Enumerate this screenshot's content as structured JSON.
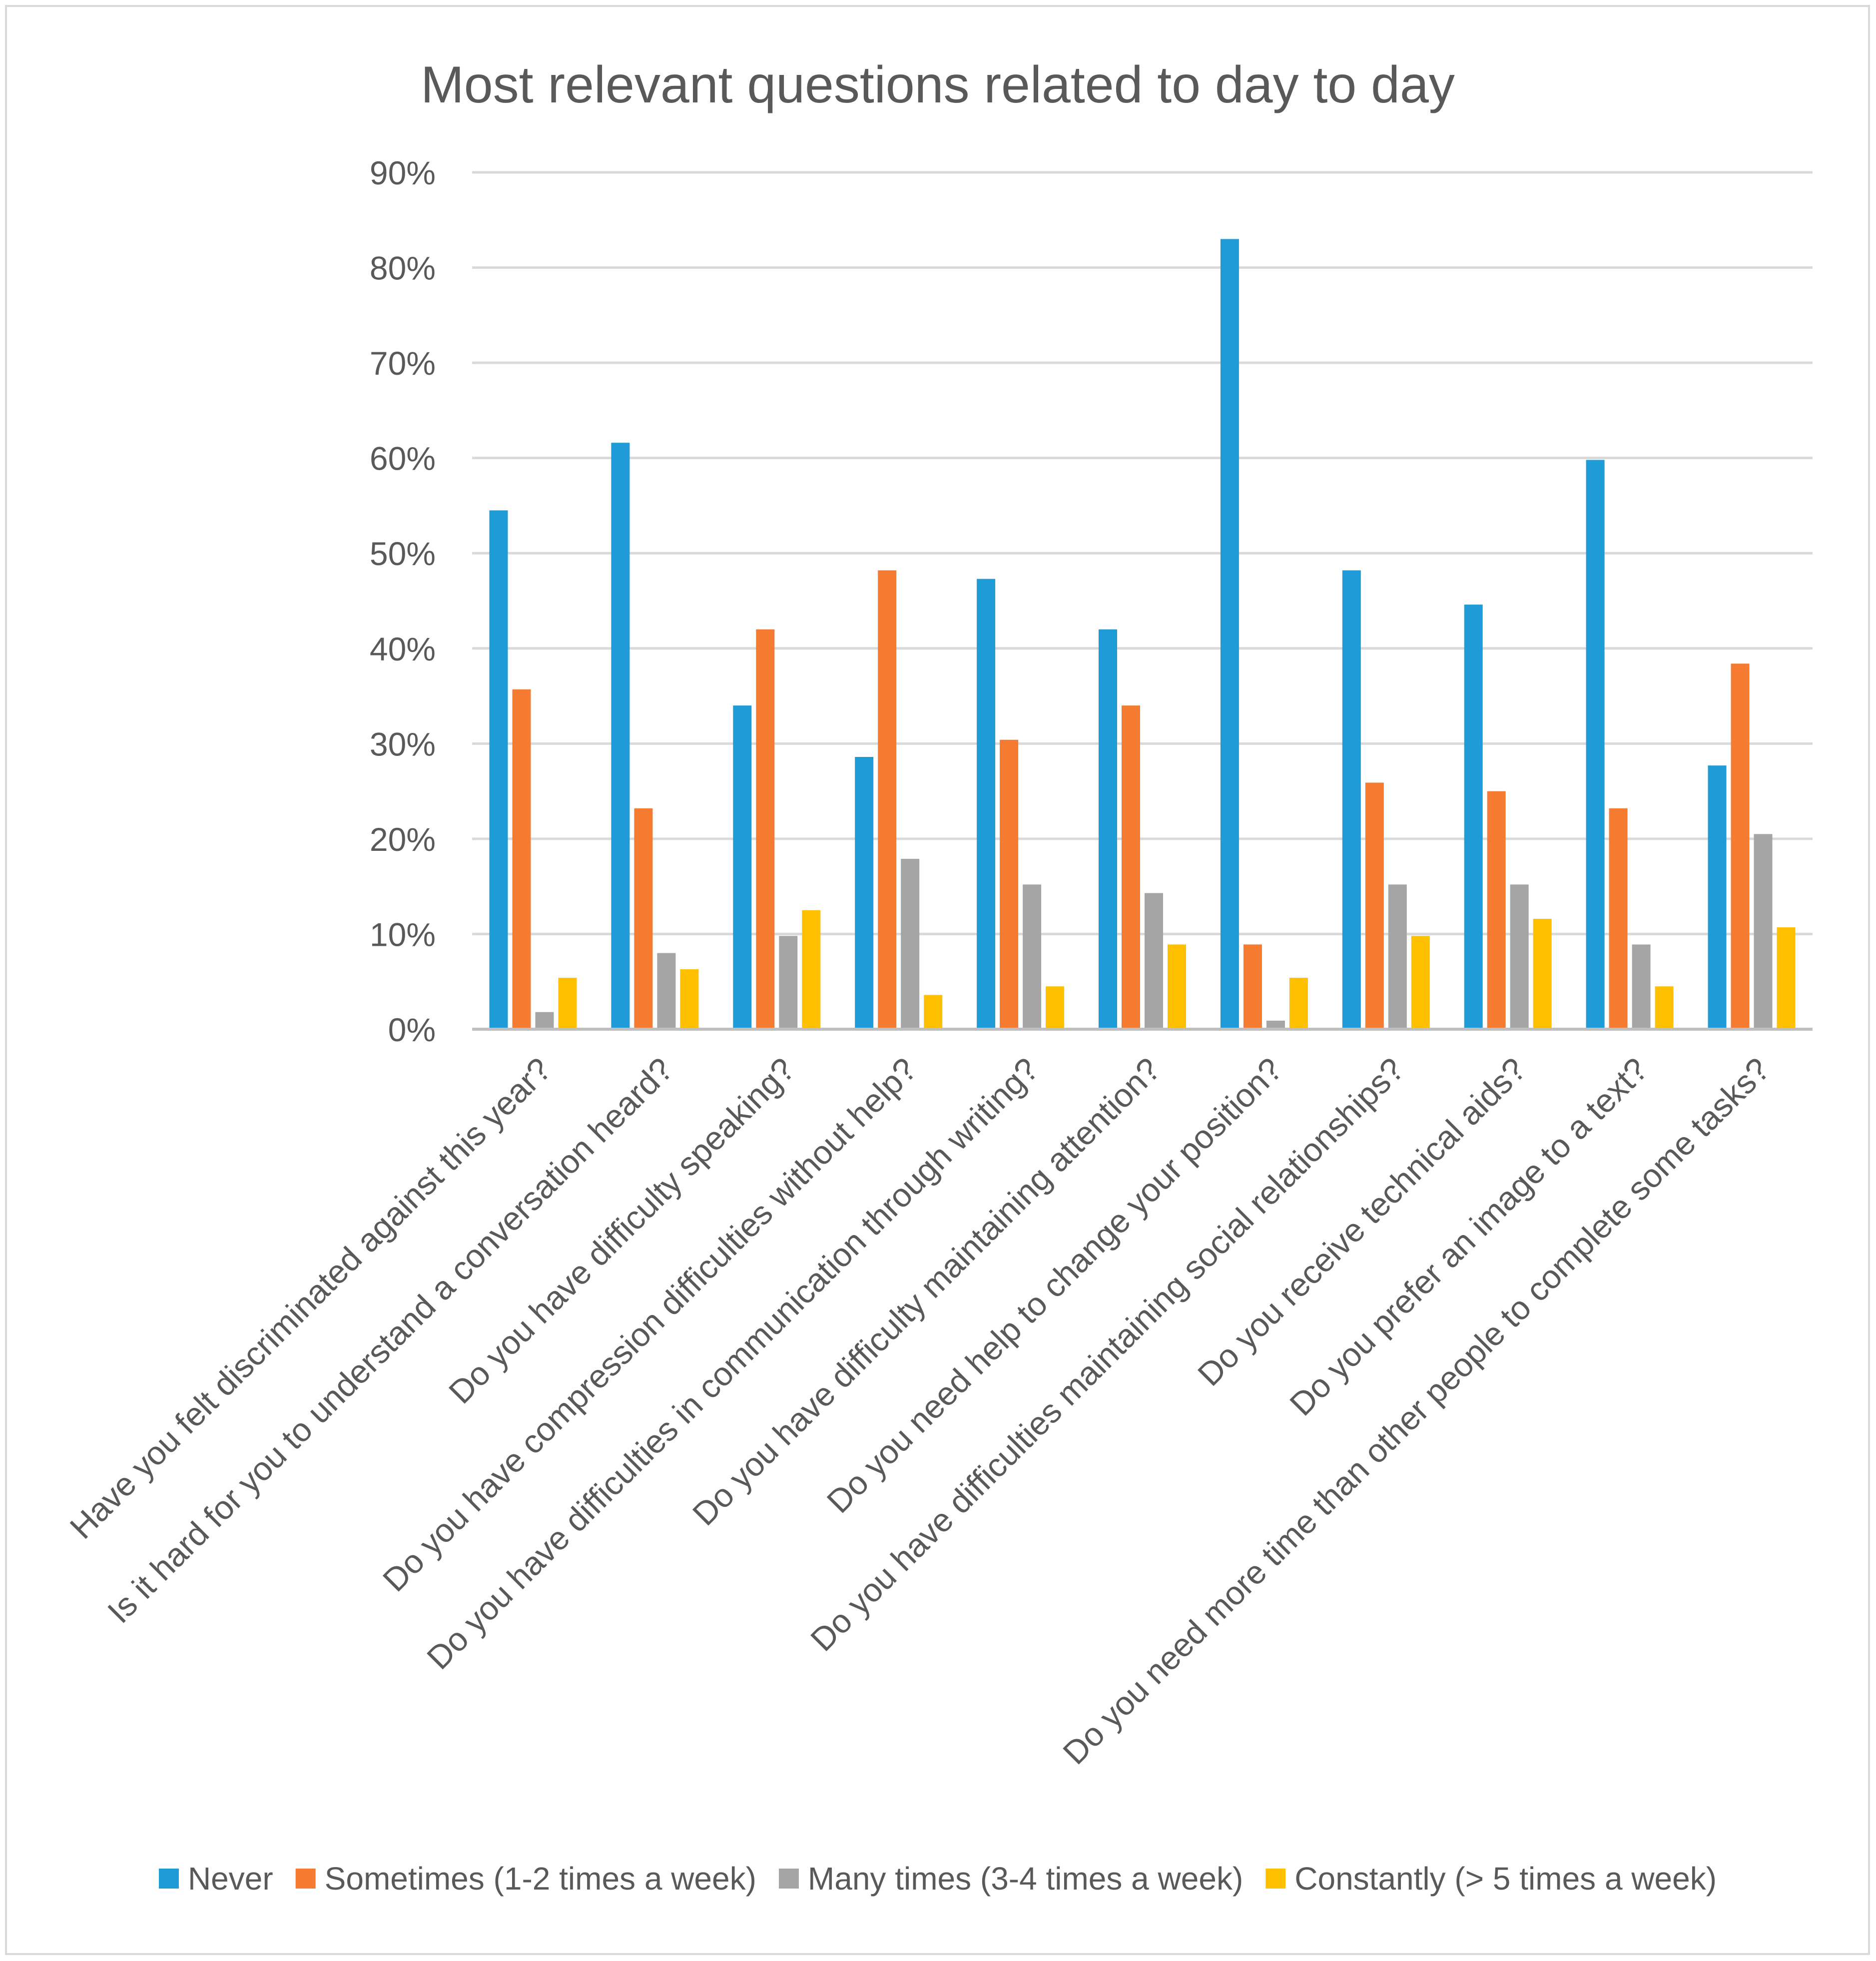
{
  "chart_data": {
    "type": "bar",
    "title": "Most relevant questions related to day to day",
    "xlabel": "",
    "ylabel": "",
    "ylim": [
      0,
      90
    ],
    "ytick_step": 10,
    "ytick_suffix": "%",
    "grid": true,
    "legend_position": "bottom",
    "categories": [
      "Have you felt discriminated against this year?",
      "Is it hard for you to understand a conversation heard?",
      "Do you have difficulty speaking?",
      "Do you have compression difficulties without help?",
      "Do you have difficulties in communication through writing?",
      "Do you have difficulty maintaining attention?",
      "Do you need help to change your position?",
      "Do you have difficulties maintaining social relationships?",
      "Do you receive technical aids?",
      "Do you prefer an image to a text?",
      "Do you need more time than other people to complete some tasks?"
    ],
    "series": [
      {
        "name": "Never",
        "color": "#1f9bd7",
        "values": [
          54.5,
          61.6,
          34.0,
          28.6,
          47.3,
          42.0,
          83.0,
          48.2,
          44.6,
          59.8,
          27.7
        ]
      },
      {
        "name": "Sometimes (1-2 times a week)",
        "color": "#f47b2f",
        "values": [
          35.7,
          23.2,
          42.0,
          48.2,
          30.4,
          34.0,
          8.9,
          25.9,
          25.0,
          23.2,
          38.4
        ]
      },
      {
        "name": "Many times (3-4 times a week)",
        "color": "#a5a5a5",
        "values": [
          1.8,
          8.0,
          9.8,
          17.9,
          15.2,
          14.3,
          0.9,
          15.2,
          15.2,
          8.9,
          20.5
        ]
      },
      {
        "name": "Constantly (> 5 times a week)",
        "color": "#ffc000",
        "values": [
          5.4,
          6.3,
          12.5,
          3.6,
          4.5,
          8.9,
          5.4,
          9.8,
          11.6,
          4.5,
          10.7
        ]
      }
    ]
  }
}
